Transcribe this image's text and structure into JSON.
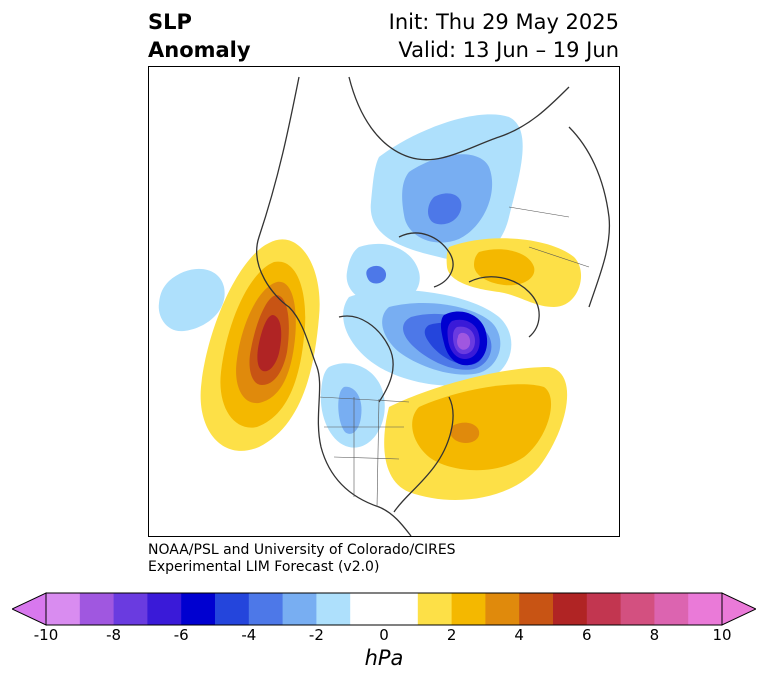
{
  "title": {
    "left_line1": "SLP",
    "left_line2": "Anomaly",
    "right_line1": "Init: Thu 29 May 2025",
    "right_line2": "Valid: 13 Jun – 19 Jun"
  },
  "credit": {
    "line1": "NOAA/PSL and University of Colorado/CIRES",
    "line2": "Experimental LIM Forecast (v2.0)"
  },
  "colorbar": {
    "unit_label": "hPa",
    "ticks": [
      "-10",
      "-8",
      "-6",
      "-4",
      "-2",
      "0",
      "2",
      "4",
      "6",
      "8",
      "10"
    ],
    "colors": [
      "#d98cf0",
      "#a057e0",
      "#6a3be0",
      "#3a1ad8",
      "#0000d0",
      "#2445dc",
      "#4d78e8",
      "#78aef2",
      "#aee0fc",
      "#ffffff",
      "#ffffff",
      "#fde047",
      "#f4b800",
      "#e08a0c",
      "#c85414",
      "#b02424",
      "#c23650",
      "#d35080",
      "#dc64b0",
      "#ea7ad8"
    ],
    "extend_min_color": "#d878ee",
    "extend_max_color": "#ea7ad8"
  }
}
